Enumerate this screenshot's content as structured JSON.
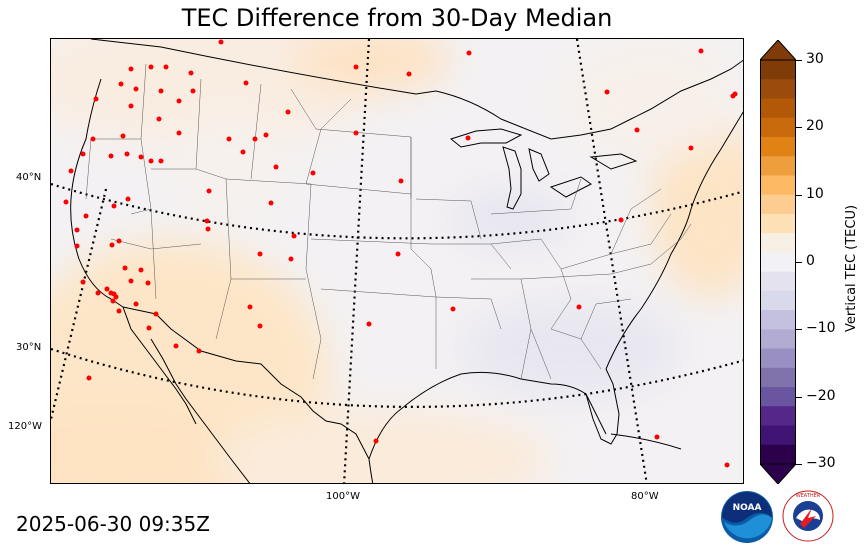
{
  "title": "TEC Difference from 30-Day Median",
  "timestamp": "2025-06-30 09:35Z",
  "lat_labels": [
    "40°N",
    "30°N",
    "120°W"
  ],
  "lon_labels": [
    "100°W",
    "80°W"
  ],
  "colorbar": {
    "label": "Vertical TEC (TECU)",
    "ticks": [
      "30",
      "20",
      "10",
      "0",
      "−10",
      "−20",
      "−30"
    ],
    "colors_top_to_bottom": [
      "#7f3b08",
      "#9b4b0c",
      "#b35806",
      "#c8690c",
      "#e08214",
      "#ee9e3d",
      "#fdb863",
      "#fdcc91",
      "#fee0b6",
      "#f7efe3",
      "#f2f1f5",
      "#e3e2ee",
      "#d8daeb",
      "#c4c0df",
      "#b2abd2",
      "#9a8fc2",
      "#8073ac",
      "#6a56a0",
      "#542788",
      "#3f1472",
      "#2d004b"
    ],
    "min": -30,
    "max": 30,
    "extend": "both"
  },
  "stations_color": "#ff0000",
  "logos": [
    "NOAA",
    "NATIONAL WEATHER SERVICE"
  ]
}
